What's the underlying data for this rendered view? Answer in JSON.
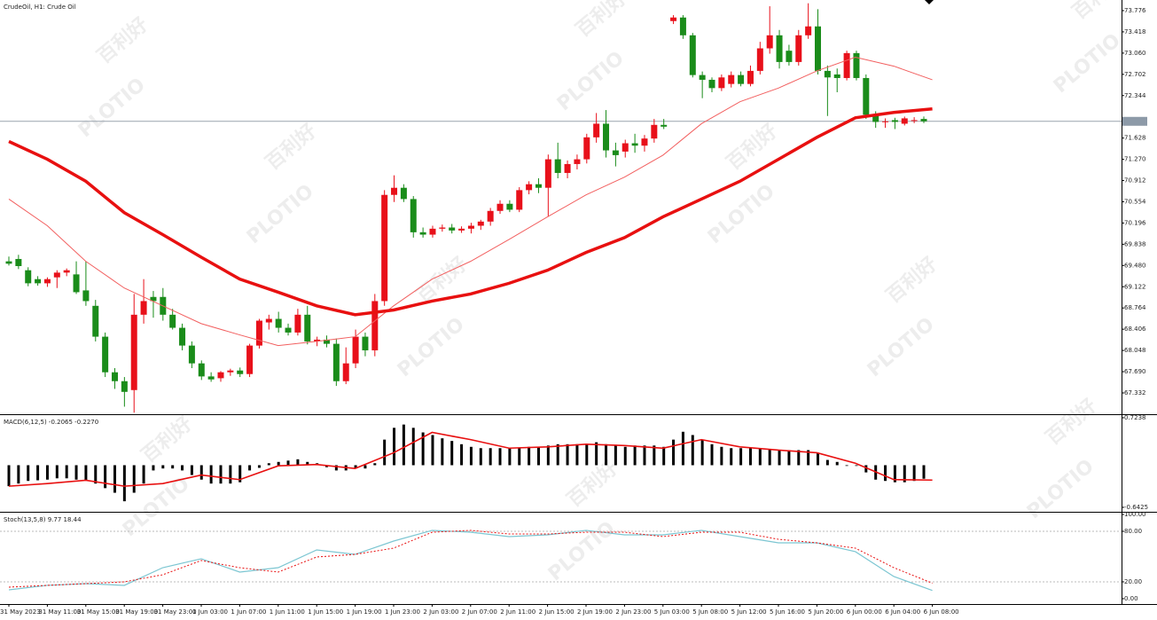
{
  "chart_data": [
    {
      "type": "candlestick",
      "title": "CrudeOil, H1: Crude Oil",
      "categories": [
        "31 May 2023",
        "31 May 11:00",
        "31 May 15:00",
        "31 May 19:00",
        "31 May 23:00",
        "1 Jun 03:00",
        "1 Jun 07:00",
        "1 Jun 11:00",
        "1 Jun 15:00",
        "1 Jun 19:00",
        "1 Jun 23:00",
        "2 Jun 03:00",
        "2 Jun 07:00",
        "2 Jun 11:00",
        "2 Jun 15:00",
        "2 Jun 19:00",
        "2 Jun 23:00",
        "5 Jun 03:00",
        "5 Jun 08:00",
        "5 Jun 12:00",
        "5 Jun 16:00",
        "5 Jun 20:00",
        "6 Jun 00:00",
        "6 Jun 04:00",
        "6 Jun 08:00"
      ],
      "up_color": "#e8101a",
      "down_color": "#1a8c1a",
      "ohlc": [
        [
          69.55,
          69.63,
          69.48,
          69.51
        ],
        [
          69.59,
          69.66,
          69.42,
          69.47
        ],
        [
          69.4,
          69.45,
          69.13,
          69.18
        ],
        [
          69.25,
          69.3,
          69.14,
          69.18
        ],
        [
          69.18,
          69.28,
          69.12,
          69.25
        ],
        [
          69.28,
          69.4,
          69.1,
          69.36
        ],
        [
          69.36,
          69.43,
          69.3,
          69.4
        ],
        [
          69.33,
          69.55,
          69.0,
          69.03
        ],
        [
          69.06,
          69.55,
          68.8,
          68.88
        ],
        [
          68.8,
          68.9,
          68.2,
          68.28
        ],
        [
          68.28,
          68.35,
          67.6,
          67.68
        ],
        [
          67.68,
          67.75,
          67.4,
          67.53
        ],
        [
          67.53,
          67.6,
          67.1,
          67.35
        ],
        [
          67.38,
          69.0,
          67.0,
          68.65
        ],
        [
          68.65,
          69.25,
          68.5,
          68.88
        ],
        [
          68.95,
          69.05,
          68.6,
          68.88
        ],
        [
          68.95,
          69.1,
          68.55,
          68.65
        ],
        [
          68.65,
          68.75,
          68.4,
          68.43
        ],
        [
          68.43,
          68.5,
          68.05,
          68.13
        ],
        [
          68.13,
          68.2,
          67.75,
          67.83
        ],
        [
          67.83,
          67.88,
          67.55,
          67.61
        ],
        [
          67.61,
          67.68,
          67.52,
          67.56
        ],
        [
          67.58,
          67.7,
          67.52,
          67.68
        ],
        [
          67.68,
          67.74,
          67.62,
          67.71
        ],
        [
          67.71,
          67.76,
          67.6,
          67.65
        ],
        [
          67.65,
          68.16,
          67.6,
          68.13
        ],
        [
          68.13,
          68.58,
          68.08,
          68.55
        ],
        [
          68.52,
          68.65,
          68.4,
          68.58
        ],
        [
          68.58,
          68.7,
          68.35,
          68.43
        ],
        [
          68.43,
          68.5,
          68.3,
          68.35
        ],
        [
          68.35,
          68.75,
          68.3,
          68.65
        ],
        [
          68.65,
          68.8,
          68.15,
          68.2
        ],
        [
          68.2,
          68.28,
          68.12,
          68.23
        ],
        [
          68.23,
          68.3,
          68.1,
          68.16
        ],
        [
          68.16,
          68.25,
          67.45,
          67.53
        ],
        [
          67.53,
          68.1,
          67.48,
          67.83
        ],
        [
          67.83,
          68.4,
          67.75,
          68.28
        ],
        [
          68.28,
          68.35,
          67.95,
          68.05
        ],
        [
          68.05,
          69.0,
          67.95,
          68.88
        ],
        [
          68.88,
          70.75,
          68.8,
          70.67
        ],
        [
          70.67,
          71.0,
          70.55,
          70.79
        ],
        [
          70.79,
          70.85,
          70.55,
          70.6
        ],
        [
          70.6,
          70.65,
          69.95,
          70.04
        ],
        [
          70.04,
          70.12,
          69.95,
          70.0
        ],
        [
          70.0,
          70.15,
          69.95,
          70.1
        ],
        [
          70.1,
          70.17,
          70.05,
          70.12
        ],
        [
          70.12,
          70.18,
          70.02,
          70.07
        ],
        [
          70.07,
          70.14,
          70.03,
          70.1
        ],
        [
          70.1,
          70.2,
          70.02,
          70.15
        ],
        [
          70.15,
          70.25,
          70.08,
          70.22
        ],
        [
          70.22,
          70.45,
          70.15,
          70.4
        ],
        [
          70.4,
          70.58,
          70.35,
          70.52
        ],
        [
          70.52,
          70.58,
          70.38,
          70.42
        ],
        [
          70.42,
          70.8,
          70.38,
          70.75
        ],
        [
          70.75,
          70.9,
          70.68,
          70.85
        ],
        [
          70.85,
          70.95,
          70.7,
          70.79
        ],
        [
          70.79,
          71.35,
          70.3,
          71.27
        ],
        [
          71.27,
          71.55,
          70.95,
          71.04
        ],
        [
          71.04,
          71.25,
          70.95,
          71.19
        ],
        [
          71.19,
          71.35,
          71.1,
          71.27
        ],
        [
          71.27,
          71.7,
          71.2,
          71.64
        ],
        [
          71.64,
          72.05,
          71.55,
          71.87
        ],
        [
          71.87,
          72.1,
          71.3,
          71.42
        ],
        [
          71.42,
          71.55,
          71.15,
          71.34
        ],
        [
          71.4,
          71.6,
          71.3,
          71.54
        ],
        [
          71.54,
          71.7,
          71.38,
          71.5
        ],
        [
          71.5,
          71.68,
          71.4,
          71.62
        ],
        [
          71.62,
          71.95,
          71.55,
          71.85
        ],
        [
          71.85,
          71.95,
          71.78,
          71.82
        ],
        [
          73.6,
          73.7,
          73.55,
          73.66
        ],
        [
          73.66,
          73.7,
          73.3,
          73.36
        ],
        [
          73.36,
          73.4,
          72.65,
          72.69
        ],
        [
          72.69,
          72.75,
          72.3,
          72.61
        ],
        [
          72.61,
          72.65,
          72.4,
          72.47
        ],
        [
          72.47,
          72.7,
          72.42,
          72.65
        ],
        [
          72.54,
          72.75,
          72.48,
          72.69
        ],
        [
          72.69,
          72.75,
          72.5,
          72.54
        ],
        [
          72.54,
          72.85,
          72.5,
          72.76
        ],
        [
          72.76,
          73.25,
          72.7,
          73.14
        ],
        [
          73.14,
          73.85,
          73.05,
          73.36
        ],
        [
          73.36,
          73.45,
          72.8,
          72.91
        ],
        [
          73.1,
          73.2,
          72.85,
          72.91
        ],
        [
          72.91,
          73.45,
          72.85,
          73.36
        ],
        [
          73.36,
          73.9,
          73.3,
          73.51
        ],
        [
          73.51,
          73.8,
          72.7,
          72.76
        ],
        [
          72.76,
          72.85,
          72.0,
          72.65
        ],
        [
          72.7,
          72.8,
          72.4,
          72.64
        ],
        [
          72.64,
          73.1,
          72.6,
          73.06
        ],
        [
          73.06,
          73.1,
          72.6,
          72.64
        ],
        [
          72.64,
          72.7,
          71.95,
          72.02
        ],
        [
          72.02,
          72.08,
          71.8,
          71.9
        ],
        [
          71.9,
          71.96,
          71.8,
          71.91
        ],
        [
          71.93,
          71.97,
          71.78,
          71.9
        ],
        [
          71.87,
          71.99,
          71.84,
          71.96
        ],
        [
          71.92,
          71.98,
          71.88,
          71.93
        ],
        [
          71.95,
          71.99,
          71.88,
          71.91
        ]
      ],
      "series": [
        {
          "color": "#f26060",
          "width": 1,
          "values": [
            70.6,
            70.15,
            69.55,
            69.1,
            68.8,
            68.5,
            68.31,
            68.13,
            68.2,
            68.28,
            68.8,
            69.25,
            69.55,
            69.92,
            70.3,
            70.67,
            70.97,
            71.34,
            71.87,
            72.24,
            72.47,
            72.76,
            72.99,
            72.84,
            72.61
          ]
        },
        {
          "color": "#e81010",
          "width": 3.5,
          "values": [
            71.57,
            71.27,
            70.9,
            70.37,
            70.0,
            69.62,
            69.25,
            69.03,
            68.8,
            68.65,
            68.73,
            68.88,
            69.0,
            69.18,
            69.4,
            69.7,
            69.95,
            70.3,
            70.6,
            70.9,
            71.27,
            71.64,
            71.97,
            72.06,
            72.12
          ]
        }
      ],
      "price_line": 71.91,
      "ylim": [
        66.988,
        73.955
      ],
      "yticks": [
        73.776,
        73.418,
        {
          "value": 73.06,
          "label": "73.060"
        },
        72.702,
        72.344,
        71.628,
        {
          "value": 71.27,
          "label": "71.270"
        },
        70.912,
        70.554,
        70.196,
        69.838,
        {
          "value": 69.48,
          "label": "69.480"
        },
        69.122,
        68.764,
        68.406,
        68.048,
        {
          "value": 67.69,
          "label": "67.690"
        },
        67.332
      ]
    },
    {
      "type": "bar",
      "title": "MACD(6,12,5) -0.2065 -0.2270",
      "color": "#000000",
      "values": [
        -0.32,
        -0.28,
        -0.24,
        -0.23,
        -0.22,
        -0.2,
        -0.2,
        -0.22,
        -0.23,
        -0.28,
        -0.35,
        -0.42,
        -0.55,
        -0.42,
        -0.28,
        -0.08,
        -0.05,
        -0.05,
        -0.08,
        -0.15,
        -0.22,
        -0.28,
        -0.28,
        -0.28,
        -0.26,
        -0.08,
        -0.04,
        0.03,
        0.05,
        0.07,
        0.09,
        0.05,
        0.03,
        -0.03,
        -0.08,
        -0.08,
        -0.05,
        -0.05,
        0.03,
        0.39,
        0.57,
        0.62,
        0.57,
        0.5,
        0.46,
        0.41,
        0.37,
        0.32,
        0.28,
        0.26,
        0.26,
        0.26,
        0.26,
        0.26,
        0.28,
        0.28,
        0.3,
        0.32,
        0.32,
        0.32,
        0.32,
        0.35,
        0.32,
        0.3,
        0.28,
        0.3,
        0.3,
        0.3,
        0.28,
        0.39,
        0.51,
        0.46,
        0.39,
        0.32,
        0.28,
        0.26,
        0.26,
        0.26,
        0.26,
        0.24,
        0.23,
        0.23,
        0.23,
        0.23,
        0.19,
        0.08,
        0.05,
        -0.01,
        -0.01,
        -0.11,
        -0.22,
        -0.24,
        -0.26,
        -0.26,
        -0.24,
        -0.2065
      ],
      "series": [
        {
          "color": "#e81010",
          "width": 1.6,
          "values": [
            -0.32,
            -0.28,
            -0.23,
            -0.32,
            -0.28,
            -0.15,
            -0.22,
            -0.01,
            0.01,
            -0.05,
            0.19,
            0.5,
            0.39,
            0.26,
            0.28,
            0.32,
            0.3,
            0.26,
            0.39,
            0.28,
            0.23,
            0.19,
            0.03,
            -0.22,
            -0.227
          ]
        }
      ],
      "ylim": [
        -0.697,
        0.764
      ],
      "yticks": [
        0.7238,
        -0.6425
      ]
    },
    {
      "type": "line",
      "title": "Stoch(13,5,8) 9.77 18.44",
      "series": [
        {
          "color": "#7cc6d2",
          "width": 1.2,
          "values": [
            10.5,
            15.8,
            17.9,
            15.8,
            36.8,
            47.4,
            31.6,
            36.8,
            57.9,
            52.6,
            68.4,
            81.1,
            78.9,
            73.7,
            75.8,
            81.1,
            75.8,
            75.8,
            81.1,
            73.7,
            66.3,
            66.3,
            55.8,
            26.3,
            9.77
          ]
        },
        {
          "color": "#e81010",
          "width": 1,
          "dash": true,
          "values": [
            13.7,
            15.8,
            17.9,
            20.0,
            28.4,
            45.3,
            36.8,
            31.6,
            49.5,
            52.6,
            60.0,
            78.9,
            81.1,
            76.8,
            76.8,
            78.9,
            78.9,
            73.7,
            78.9,
            78.9,
            70.5,
            66.3,
            60.0,
            36.8,
            18.44
          ]
        }
      ],
      "levels": [
        80,
        20
      ],
      "ylim": [
        -5.3,
        102.1
      ],
      "yticks": [
        {
          "value": 100,
          "label": "100.00"
        },
        {
          "value": 80,
          "label": "80.00"
        },
        {
          "value": 20,
          "label": "20.00"
        },
        {
          "value": 0,
          "label": "0.00"
        }
      ]
    }
  ],
  "watermark": {
    "brand": "PLOTIO",
    "chinese": "百利好"
  }
}
